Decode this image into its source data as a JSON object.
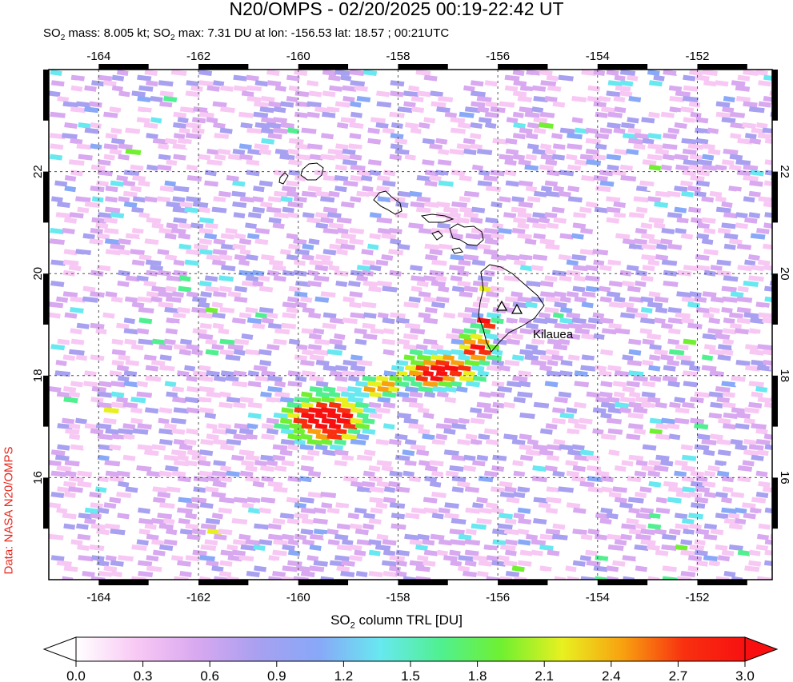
{
  "title": "N20/OMPS - 02/20/2025 00:19-22:42 UT",
  "subtitle_parts": [
    "SO",
    "2",
    " mass: 8.005 kt; SO",
    "2",
    " max: 7.31 DU at lon: -156.53 lat: 18.57 ; 00:21UTC"
  ],
  "credit": "Data: NASA N20/OMPS",
  "map": {
    "lon_range": [
      -165,
      -150.5
    ],
    "lat_range": [
      14,
      24
    ],
    "lon_ticks": [
      "-164",
      "-162",
      "-160",
      "-158",
      "-156",
      "-154",
      "-152"
    ],
    "lon_tick_values": [
      -164,
      -162,
      -160,
      -158,
      -156,
      -154,
      -152
    ],
    "lat_ticks": [
      "16",
      "18",
      "20",
      "22"
    ],
    "lat_tick_values": [
      16,
      18,
      20,
      22
    ],
    "volcano_label": "Kilauea",
    "gridlines": "dotted"
  },
  "colorbar": {
    "label_parts": [
      "SO",
      "2",
      " column TRL [DU]"
    ],
    "ticks": [
      "0.0",
      "0.3",
      "0.6",
      "0.9",
      "1.2",
      "1.5",
      "1.8",
      "2.1",
      "2.4",
      "2.7",
      "3.0"
    ],
    "range": [
      0.0,
      3.0
    ],
    "colors": [
      "#ffffff",
      "#f8c8f4",
      "#d8a8f0",
      "#a8a0f0",
      "#88a8f8",
      "#68e8f0",
      "#50f090",
      "#70f030",
      "#e8f020",
      "#f8a010",
      "#f83010",
      "#f81010"
    ]
  }
}
